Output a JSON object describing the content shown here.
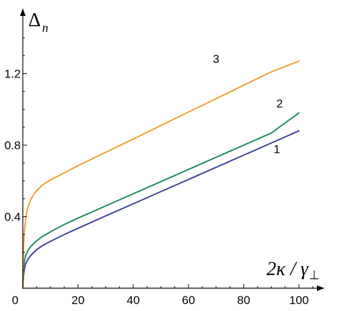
{
  "chart_data": {
    "type": "line",
    "title": "",
    "xlabel": {
      "main": "2κ / γ",
      "sub": "⊥"
    },
    "ylabel": {
      "main": "Δ",
      "sub": "n"
    },
    "xlim": [
      0,
      110
    ],
    "ylim": [
      0,
      1.45
    ],
    "xticks": [
      0,
      20,
      40,
      60,
      80,
      100
    ],
    "xtick_labels": [
      "0",
      "20",
      "40",
      "60",
      "80",
      "100"
    ],
    "yticks": [
      0.4,
      0.8,
      1.2
    ],
    "ytick_labels": [
      "0.4",
      "0.8",
      "1.2"
    ],
    "grid": false,
    "legend": "none",
    "series": [
      {
        "label": "1",
        "color": "#3d4199",
        "x": [
          0,
          0.25,
          0.5,
          1,
          2,
          3,
          5,
          7,
          10,
          15,
          20,
          30,
          40,
          50,
          60,
          70,
          80,
          90,
          100
        ],
        "y": [
          0,
          0.065,
          0.1,
          0.135,
          0.165,
          0.185,
          0.215,
          0.237,
          0.262,
          0.3,
          0.335,
          0.404,
          0.472,
          0.54,
          0.608,
          0.676,
          0.744,
          0.812,
          0.88
        ]
      },
      {
        "label": "2",
        "color": "#1e8a5a",
        "x": [
          0,
          0.25,
          0.5,
          1,
          2,
          3,
          5,
          7,
          10,
          15,
          20,
          30,
          40,
          50,
          60,
          70,
          80,
          90,
          100
        ],
        "y": [
          0,
          0.1,
          0.14,
          0.18,
          0.215,
          0.235,
          0.265,
          0.288,
          0.315,
          0.356,
          0.392,
          0.46,
          0.528,
          0.596,
          0.664,
          0.732,
          0.8,
          0.868,
          0.98
        ]
      },
      {
        "label": "3",
        "color": "#f0a030",
        "x": [
          0,
          0.25,
          0.5,
          1,
          1.5,
          2,
          3,
          4,
          5,
          7,
          10,
          15,
          20,
          30,
          40,
          50,
          60,
          70,
          80,
          90,
          100
        ],
        "y": [
          0,
          0.22,
          0.3,
          0.385,
          0.43,
          0.46,
          0.5,
          0.525,
          0.545,
          0.575,
          0.605,
          0.645,
          0.685,
          0.76,
          0.834,
          0.91,
          0.985,
          1.06,
          1.135,
          1.21,
          1.27
        ]
      }
    ]
  }
}
